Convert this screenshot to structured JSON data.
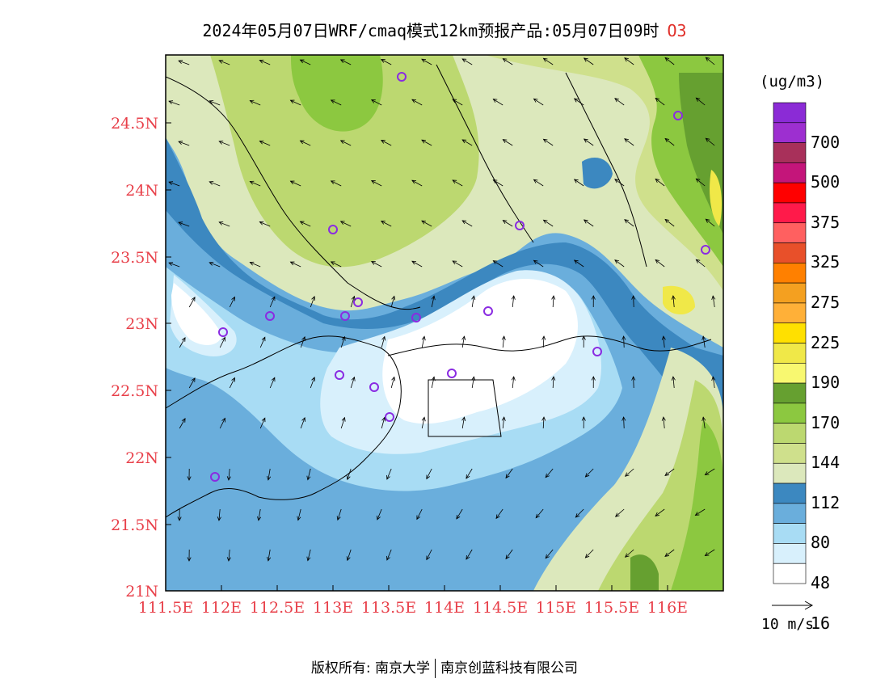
{
  "title": "2024年05月07日WRF/cmaq模式12km预报产品:05月07日09时",
  "pollutant": "O3",
  "unit": "(ug/m3)",
  "wind_scale_label": "10 m/s",
  "copyright": {
    "left": "版权所有: 南京大学",
    "right": "南京创蓝科技有限公司"
  },
  "lon_ticks": [
    "111.5E",
    "112E",
    "112.5E",
    "113E",
    "113.5E",
    "114E",
    "114.5E",
    "115E",
    "115.5E",
    "116E"
  ],
  "lat_ticks": [
    "24.5N",
    "24N",
    "23.5N",
    "23N",
    "22.5N",
    "22N",
    "21.5N",
    "21N"
  ],
  "colorbar": {
    "labels": [
      "700",
      "500",
      "375",
      "325",
      "275",
      "225",
      "190",
      "170",
      "144",
      "112",
      "80",
      "48",
      "16"
    ],
    "colors_top_to_bottom": [
      "#8b2bd6",
      "#9d2fd0",
      "#a8305a",
      "#c4157a",
      "#ff0000",
      "#ff1a4a",
      "#ff6060",
      "#e8502a",
      "#ff8000",
      "#f4a020",
      "#ffb038",
      "#ffe000",
      "#f0e848",
      "#f8f870",
      "#66a030",
      "#8cc840",
      "#bcd870",
      "#cfe08c",
      "#dce8bc",
      "#3c88c0",
      "#6aaedc",
      "#a8dcf4",
      "#d8f0fc",
      "#ffffff"
    ]
  },
  "map": {
    "colors": {
      "white": "#ffffff",
      "lighter_blue": "#d8f0fc",
      "light_blue": "#a8dcf4",
      "mid_blue": "#6aaedc",
      "dark_blue": "#3c88c0",
      "pale": "#dce8bc",
      "pale_green": "#cfe08c",
      "light_green": "#bcd870",
      "green": "#8cc840",
      "dark_green": "#66a030",
      "yellow": "#f0e848"
    },
    "station_icon": "purple-circle-icon",
    "wind_icon": "arrow-icon"
  }
}
